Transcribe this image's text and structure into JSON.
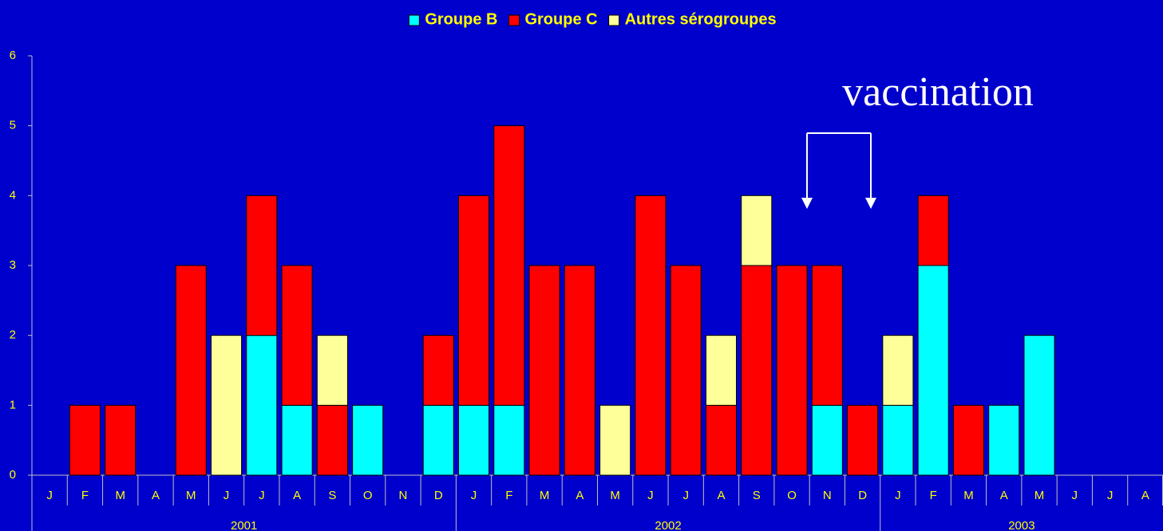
{
  "chart_data": {
    "type": "stacked_bar",
    "groups": [
      {
        "label": "2001",
        "categories": [
          "J",
          "F",
          "M",
          "A",
          "M",
          "J",
          "J",
          "A",
          "S",
          "O",
          "N",
          "D"
        ]
      },
      {
        "label": "2002",
        "categories": [
          "J",
          "F",
          "M",
          "A",
          "M",
          "J",
          "J",
          "A",
          "S",
          "O",
          "N",
          "D"
        ]
      },
      {
        "label": "2003",
        "categories": [
          "J",
          "F",
          "M",
          "A",
          "M",
          "J",
          "J",
          "A"
        ]
      }
    ],
    "series": [
      {
        "name": "Groupe B",
        "color": "#00ffff",
        "values": [
          0,
          0,
          0,
          0,
          0,
          0,
          2,
          1,
          0,
          1,
          0,
          1,
          1,
          1,
          0,
          0,
          0,
          0,
          0,
          0,
          0,
          0,
          1,
          0,
          1,
          3,
          0,
          1,
          2,
          0,
          0,
          0
        ]
      },
      {
        "name": "Groupe C",
        "color": "#ff0000",
        "values": [
          0,
          1,
          1,
          0,
          3,
          0,
          2,
          2,
          1,
          0,
          0,
          1,
          3,
          4,
          3,
          3,
          0,
          4,
          3,
          1,
          3,
          3,
          2,
          1,
          0,
          1,
          1,
          0,
          0,
          0,
          0,
          0
        ]
      },
      {
        "name": "Autres sérogroupes",
        "color": "#ffff99",
        "values": [
          0,
          0,
          0,
          0,
          0,
          2,
          0,
          0,
          1,
          0,
          0,
          0,
          0,
          0,
          0,
          0,
          1,
          0,
          0,
          1,
          1,
          0,
          0,
          0,
          1,
          0,
          0,
          0,
          0,
          0,
          0,
          0
        ]
      }
    ],
    "ylim": [
      0,
      6
    ],
    "yticks": [
      0,
      1,
      2,
      3,
      4,
      5,
      6
    ],
    "annotation": "vaccination"
  }
}
